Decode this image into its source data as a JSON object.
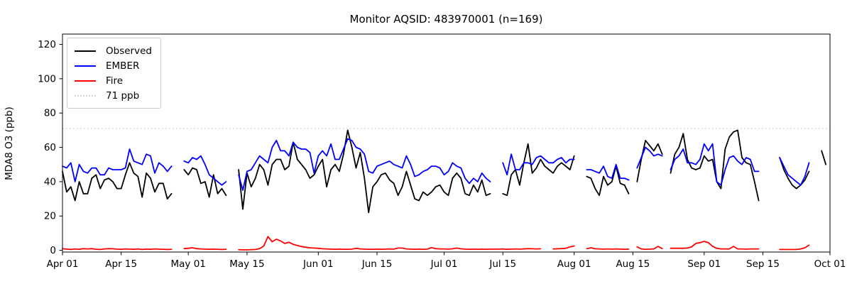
{
  "title": "Monitor AQSID: 483970001 (n=169)",
  "chart_data": {
    "type": "line",
    "title": "Monitor AQSID: 483970001 (n=169)",
    "xlabel": "",
    "ylabel": "MDA8 O3 (ppb)",
    "x_start": "Apr 01",
    "x_end": "Oct 01",
    "x_unit": "day",
    "xlim": [
      0,
      183
    ],
    "ylim": [
      -1,
      126
    ],
    "y_ticks": [
      0,
      20,
      40,
      60,
      80,
      100,
      120
    ],
    "x_ticks": [
      {
        "label": "Apr 01",
        "day": 0
      },
      {
        "label": "Apr 15",
        "day": 14
      },
      {
        "label": "May 01",
        "day": 30
      },
      {
        "label": "May 15",
        "day": 44
      },
      {
        "label": "Jun 01",
        "day": 61
      },
      {
        "label": "Jun 15",
        "day": 75
      },
      {
        "label": "Jul 01",
        "day": 91
      },
      {
        "label": "Jul 15",
        "day": 105
      },
      {
        "label": "Aug 01",
        "day": 122
      },
      {
        "label": "Aug 15",
        "day": 136
      },
      {
        "label": "Sep 01",
        "day": 153
      },
      {
        "label": "Sep 15",
        "day": 167
      },
      {
        "label": "Oct 01",
        "day": 183
      }
    ],
    "grid": false,
    "legend_position": "upper-left",
    "threshold": {
      "label": "71 ppb",
      "value": 71,
      "color": "#d3d3d3",
      "style": "dotted"
    },
    "series": [
      {
        "name": "Observed",
        "color": "#000000",
        "style": "solid",
        "values": [
          46,
          34,
          37,
          29,
          40,
          33,
          33,
          42,
          44,
          36,
          41,
          42,
          40,
          36,
          36,
          44,
          51,
          45,
          43,
          31,
          45,
          42,
          34,
          39,
          39,
          30,
          33,
          null,
          null,
          47,
          44,
          48,
          47,
          39,
          40,
          31,
          44,
          33,
          36,
          32,
          null,
          null,
          47,
          24,
          45,
          37,
          42,
          50,
          47,
          38,
          50,
          53,
          53,
          47,
          49,
          63,
          53,
          50,
          47,
          42,
          44,
          49,
          53,
          37,
          47,
          50,
          46,
          56,
          70,
          60,
          48,
          57,
          42,
          22,
          37,
          40,
          44,
          45,
          41,
          39,
          32,
          37,
          46,
          38,
          30,
          29,
          34,
          32,
          34,
          37,
          38,
          34,
          32,
          42,
          45,
          42,
          33,
          32,
          38,
          34,
          41,
          32,
          33,
          null,
          null,
          33,
          32,
          44,
          47,
          38,
          51,
          62,
          45,
          48,
          53,
          49,
          47,
          45,
          49,
          51,
          49,
          47,
          55,
          null,
          null,
          43,
          42,
          36,
          32,
          43,
          38,
          40,
          49,
          39,
          38,
          33,
          null,
          40,
          53,
          64,
          61,
          58,
          62,
          56,
          null,
          45,
          56,
          60,
          68,
          53,
          48,
          47,
          48,
          55,
          52,
          53,
          40,
          36,
          59,
          66,
          69,
          70,
          54,
          51,
          50,
          40,
          29,
          null,
          null,
          null,
          null,
          54,
          47,
          42,
          38,
          36,
          38,
          41,
          46,
          null,
          null,
          58,
          50
        ]
      },
      {
        "name": "EMBER",
        "color": "#0000ff",
        "style": "solid",
        "values": [
          49,
          48,
          51,
          40,
          50,
          46,
          45,
          48,
          48,
          44,
          44,
          48,
          47,
          47,
          47,
          48,
          59,
          52,
          51,
          50,
          56,
          55,
          45,
          51,
          49,
          46,
          49,
          null,
          null,
          52,
          51,
          54,
          53,
          55,
          50,
          44,
          42,
          40,
          38,
          40,
          null,
          null,
          44,
          35,
          46,
          47,
          51,
          55,
          53,
          51,
          60,
          64,
          58,
          58,
          55,
          63,
          60,
          59,
          59,
          57,
          45,
          55,
          58,
          55,
          62,
          53,
          53,
          59,
          65,
          64,
          60,
          59,
          56,
          46,
          45,
          49,
          50,
          51,
          52,
          50,
          49,
          48,
          55,
          50,
          43,
          44,
          46,
          47,
          49,
          49,
          48,
          44,
          46,
          51,
          49,
          48,
          42,
          39,
          42,
          40,
          45,
          42,
          40,
          null,
          null,
          51,
          44,
          56,
          47,
          47,
          51,
          51,
          50,
          54,
          55,
          53,
          51,
          51,
          53,
          54,
          51,
          53,
          53,
          null,
          null,
          47,
          47,
          46,
          45,
          49,
          43,
          42,
          50,
          42,
          42,
          41,
          null,
          48,
          54,
          60,
          58,
          55,
          56,
          55,
          null,
          47,
          53,
          55,
          59,
          51,
          51,
          50,
          53,
          62,
          58,
          62,
          40,
          38,
          47,
          54,
          55,
          52,
          50,
          54,
          53,
          46,
          46,
          null,
          null,
          null,
          null,
          54,
          49,
          44,
          42,
          40,
          38,
          43,
          51,
          null,
          null,
          null,
          null
        ]
      },
      {
        "name": "Fire",
        "color": "#ff0000",
        "style": "solid",
        "values": [
          1,
          0.7,
          0.5,
          0.8,
          0.6,
          1,
          0.8,
          1,
          0.6,
          0.5,
          0.8,
          1,
          0.9,
          0.7,
          0.6,
          0.8,
          0.7,
          0.6,
          0.8,
          0.5,
          0.7,
          0.6,
          0.8,
          0.7,
          0.6,
          0.5,
          0.6,
          null,
          null,
          1,
          1.2,
          1.5,
          1,
          0.8,
          0.7,
          0.6,
          0.7,
          0.6,
          0.5,
          0.6,
          null,
          null,
          0.4,
          0.3,
          0.3,
          0.4,
          0.5,
          1,
          2.5,
          8,
          5,
          6.5,
          5.5,
          4,
          4.7,
          3.5,
          2.8,
          2.2,
          1.8,
          1.5,
          1.3,
          1.2,
          0.9,
          0.8,
          0.7,
          0.6,
          0.7,
          0.6,
          0.6,
          0.7,
          1.2,
          0.8,
          0.7,
          0.6,
          0.6,
          0.7,
          0.6,
          0.7,
          0.8,
          0.7,
          1.3,
          1.3,
          0.8,
          0.7,
          0.6,
          0.7,
          0.6,
          0.7,
          1.6,
          1,
          0.8,
          0.8,
          0.7,
          0.9,
          1.3,
          0.9,
          0.7,
          0.6,
          0.7,
          0.6,
          0.7,
          0.6,
          0.7,
          0.7,
          0.7,
          0.8,
          0.6,
          0.7,
          0.8,
          0.7,
          0.8,
          1,
          0.9,
          0.8,
          0.9,
          null,
          null,
          0.8,
          0.9,
          1,
          1.2,
          2,
          2.5,
          null,
          null,
          1,
          1.5,
          0.9,
          0.8,
          0.7,
          0.8,
          0.7,
          0.8,
          0.7,
          0.6,
          0.7,
          null,
          2,
          0.8,
          0.6,
          0.7,
          0.8,
          2.3,
          1,
          null,
          1.2,
          1.2,
          1.2,
          1.2,
          1.3,
          2,
          4,
          4.5,
          5.2,
          4.5,
          2.3,
          1.2,
          0.8,
          0.8,
          0.8,
          2.3,
          0.8,
          0.8,
          0.7,
          0.8,
          0.8,
          0.8,
          null,
          null,
          null,
          null,
          0.5,
          0.5,
          0.5,
          0.5,
          0.5,
          0.8,
          1.5,
          3,
          null,
          null,
          null,
          null
        ]
      }
    ]
  }
}
